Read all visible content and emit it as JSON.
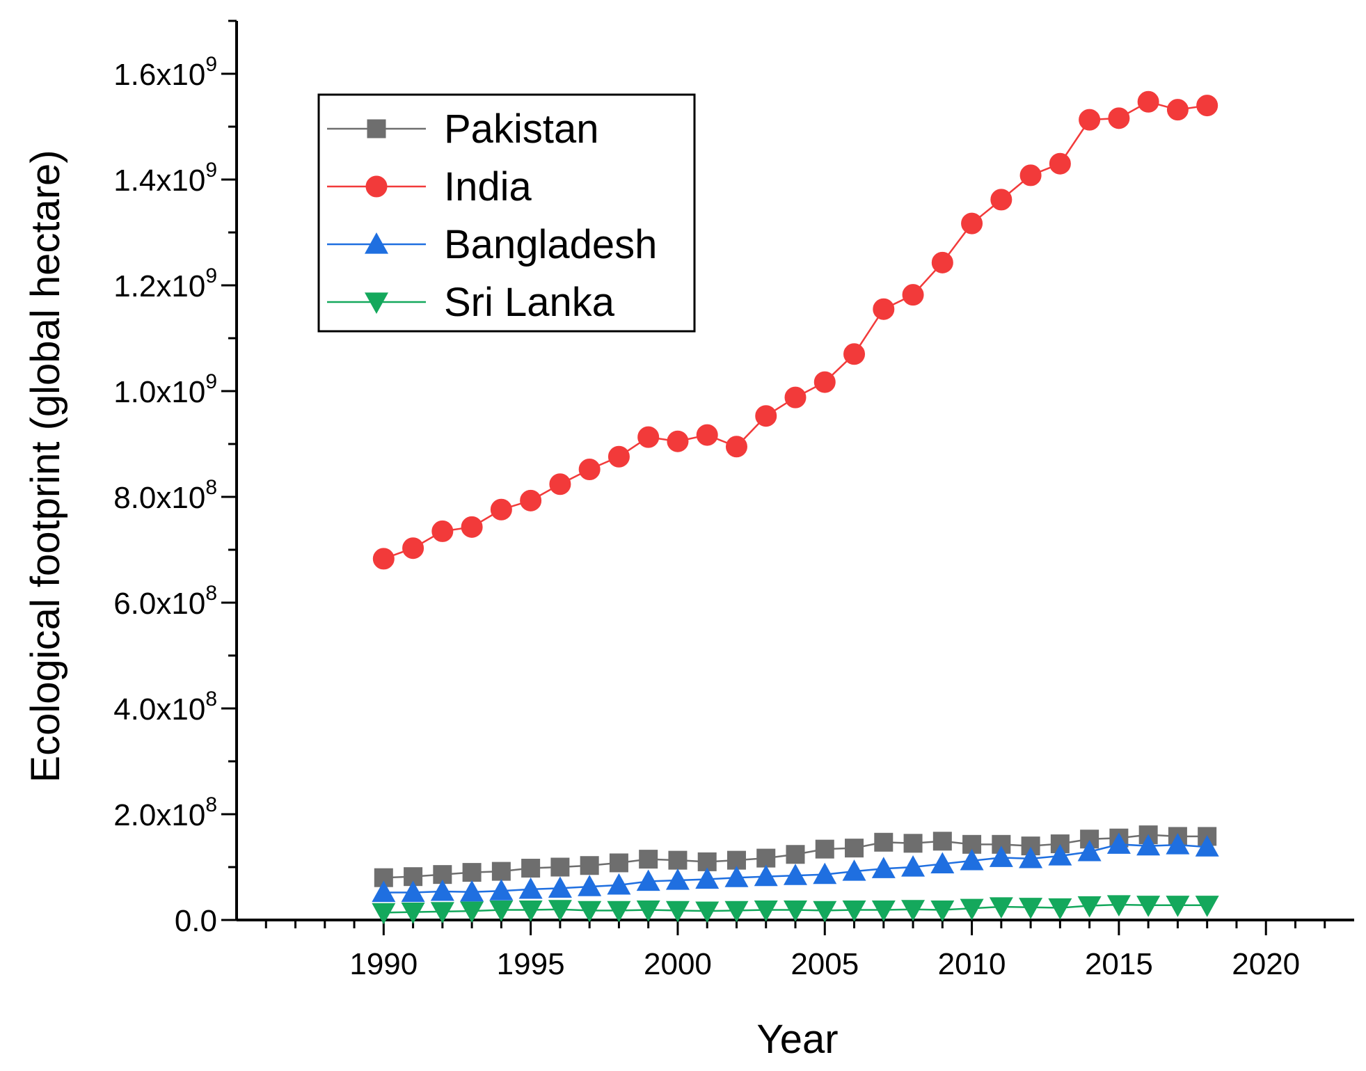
{
  "chart_data": {
    "type": "line",
    "title": "",
    "xlabel": "Year",
    "ylabel": "Ecological footprint (global hectare)",
    "xlim": [
      1985,
      2023
    ],
    "ylim": [
      0,
      1700000000.0
    ],
    "x_ticks": [
      {
        "value": 1990,
        "label": "1990"
      },
      {
        "value": 1995,
        "label": "1995"
      },
      {
        "value": 2000,
        "label": "2000"
      },
      {
        "value": 2005,
        "label": "2005"
      },
      {
        "value": 2010,
        "label": "2010"
      },
      {
        "value": 2015,
        "label": "2015"
      },
      {
        "value": 2020,
        "label": "2020"
      }
    ],
    "y_ticks": [
      {
        "value": 0,
        "mantissa": "0.0",
        "exp": ""
      },
      {
        "value": 200000000,
        "mantissa": "2.0x10",
        "exp": "8"
      },
      {
        "value": 400000000,
        "mantissa": "4.0x10",
        "exp": "8"
      },
      {
        "value": 600000000,
        "mantissa": "6.0x10",
        "exp": "8"
      },
      {
        "value": 800000000,
        "mantissa": "8.0x10",
        "exp": "8"
      },
      {
        "value": 1000000000,
        "mantissa": "1.0x10",
        "exp": "9"
      },
      {
        "value": 1200000000,
        "mantissa": "1.2x10",
        "exp": "9"
      },
      {
        "value": 1400000000,
        "mantissa": "1.4x10",
        "exp": "9"
      },
      {
        "value": 1600000000,
        "mantissa": "1.6x10",
        "exp": "9"
      }
    ],
    "legend_position": "top-left",
    "x": [
      1990,
      1991,
      1992,
      1993,
      1994,
      1995,
      1996,
      1997,
      1998,
      1999,
      2000,
      2001,
      2002,
      2003,
      2004,
      2005,
      2006,
      2007,
      2008,
      2009,
      2010,
      2011,
      2012,
      2013,
      2014,
      2015,
      2016,
      2017,
      2018
    ],
    "series": [
      {
        "name": "Pakistan",
        "color": "#6e6e6e",
        "marker": "square",
        "values": [
          80000000,
          82000000,
          86000000,
          90000000,
          92000000,
          98000000,
          100000000,
          103000000,
          108000000,
          115000000,
          113000000,
          110000000,
          113000000,
          117000000,
          124000000,
          134000000,
          136000000,
          147000000,
          145000000,
          149000000,
          143000000,
          143000000,
          140000000,
          144000000,
          153000000,
          155000000,
          161000000,
          158000000,
          158000000
        ]
      },
      {
        "name": "India",
        "color": "#f23a3a",
        "marker": "circle",
        "values": [
          683000000,
          703000000,
          735000000,
          743000000,
          776000000,
          793000000,
          824000000,
          852000000,
          876000000,
          913000000,
          905000000,
          917000000,
          895000000,
          953000000,
          988000000,
          1017000000,
          1070000000,
          1155000000,
          1182000000,
          1243000000,
          1317000000,
          1362000000,
          1408000000,
          1430000000,
          1513000000,
          1516000000,
          1547000000,
          1532000000,
          1540000000
        ]
      },
      {
        "name": "Bangladesh",
        "color": "#1f6fe0",
        "marker": "triangle-up",
        "values": [
          52000000,
          52000000,
          54000000,
          53000000,
          55000000,
          58000000,
          60000000,
          63000000,
          66000000,
          73000000,
          75000000,
          77000000,
          80000000,
          82000000,
          84000000,
          86000000,
          92000000,
          97000000,
          100000000,
          106000000,
          112000000,
          118000000,
          116000000,
          121000000,
          129000000,
          143000000,
          140000000,
          142000000,
          138000000
        ]
      },
      {
        "name": "Sri Lanka",
        "color": "#14a85c",
        "marker": "triangle-down",
        "values": [
          14000000,
          15000000,
          16000000,
          17000000,
          19000000,
          19000000,
          20000000,
          18000000,
          18000000,
          19000000,
          18000000,
          17000000,
          18000000,
          19000000,
          19000000,
          18000000,
          19000000,
          19000000,
          20000000,
          19000000,
          22000000,
          25000000,
          24000000,
          23000000,
          27000000,
          29000000,
          28000000,
          28000000,
          28000000
        ]
      }
    ]
  }
}
